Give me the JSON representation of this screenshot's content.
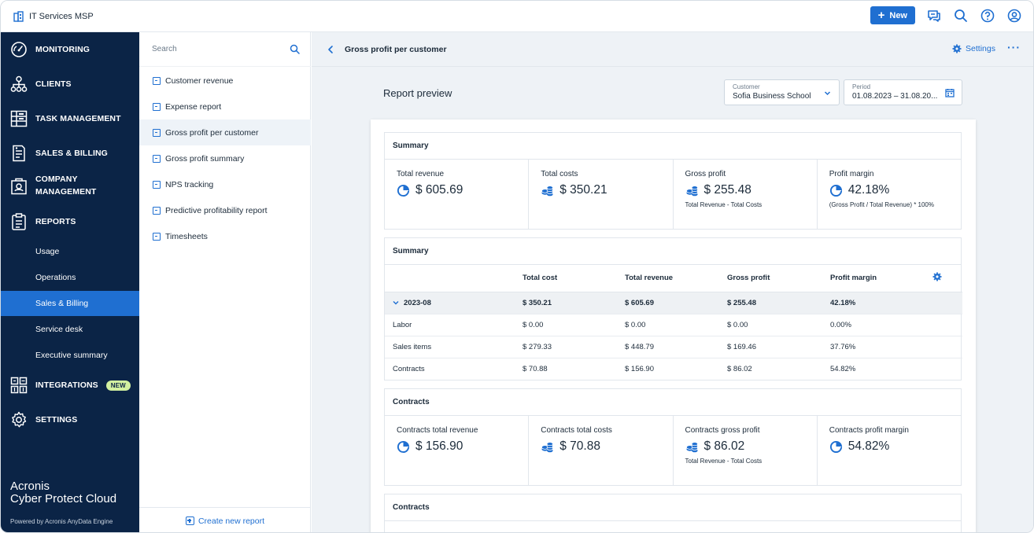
{
  "app": {
    "tenant": "IT Services MSP",
    "new_label": "New"
  },
  "nav": {
    "items": [
      {
        "label": "MONITORING",
        "icon": "gauge-icon"
      },
      {
        "label": "CLIENTS",
        "icon": "org-chart-icon"
      },
      {
        "label": "TASK MANAGEMENT",
        "icon": "task-board-icon"
      },
      {
        "label": "SALES & BILLING",
        "icon": "invoice-icon"
      },
      {
        "label": "COMPANY MANAGEMENT",
        "label_line1": "COMPANY",
        "label_line2": "MANAGEMENT",
        "icon": "briefcase-icon"
      },
      {
        "label": "REPORTS",
        "icon": "clipboard-icon"
      },
      {
        "label": "INTEGRATIONS",
        "icon": "grid-icon",
        "badge": "NEW"
      },
      {
        "label": "SETTINGS",
        "icon": "gear-icon"
      }
    ],
    "report_subitems": [
      "Usage",
      "Operations",
      "Sales & Billing",
      "Service desk",
      "Executive summary"
    ],
    "active_subitem": "Sales & Billing",
    "brand_line1": "Acronis",
    "brand_line2": "Cyber Protect Cloud",
    "powered_by": "Powered by Acronis AnyData Engine"
  },
  "reports_list": {
    "search_placeholder": "Search",
    "items": [
      "Customer revenue",
      "Expense report",
      "Gross profit per customer",
      "Gross profit summary",
      "NPS tracking",
      "Predictive profitability report",
      "Timesheets"
    ],
    "active": "Gross profit per customer",
    "create_new": "Create new report"
  },
  "content": {
    "title": "Gross profit per customer",
    "settings_label": "Settings",
    "more_label": "···",
    "preview_title": "Report preview",
    "customer": {
      "label": "Customer",
      "value": "Sofia Business School"
    },
    "period": {
      "label": "Period",
      "value": "01.08.2023 – 31.08.20..."
    }
  },
  "summary_kpis": {
    "title": "Summary",
    "items": [
      {
        "label": "Total revenue",
        "value": "$ 605.69",
        "note": "",
        "icon": "pie-chart-icon"
      },
      {
        "label": "Total costs",
        "value": "$ 350.21",
        "note": "",
        "icon": "coins-icon"
      },
      {
        "label": "Gross profit",
        "value": "$ 255.48",
        "note": "Total Revenue - Total Costs",
        "icon": "coins-icon"
      },
      {
        "label": "Profit margin",
        "value": "42.18%",
        "note": "(Gross Profit / Total Revenue) * 100%",
        "icon": "pie-chart-icon"
      }
    ]
  },
  "summary_table": {
    "title": "Summary",
    "columns": [
      "",
      "Total cost",
      "Total revenue",
      "Gross profit",
      "Profit margin"
    ],
    "group": {
      "label": "2023-08",
      "values": [
        "$ 350.21",
        "$ 605.69",
        "$ 255.48",
        "42.18%"
      ]
    },
    "rows": [
      {
        "label": "Labor",
        "values": [
          "$ 0.00",
          "$ 0.00",
          "$ 0.00",
          "0.00%"
        ]
      },
      {
        "label": "Sales items",
        "values": [
          "$ 279.33",
          "$ 448.79",
          "$ 169.46",
          "37.76%"
        ]
      },
      {
        "label": "Contracts",
        "values": [
          "$ 70.88",
          "$ 156.90",
          "$ 86.02",
          "54.82%"
        ]
      }
    ]
  },
  "contracts_kpis": {
    "title": "Contracts",
    "items": [
      {
        "label": "Contracts total revenue",
        "value": "$ 156.90",
        "note": "",
        "icon": "pie-chart-icon"
      },
      {
        "label": "Contracts total costs",
        "value": "$ 70.88",
        "note": "",
        "icon": "coins-icon"
      },
      {
        "label": "Contracts gross profit",
        "value": "$ 86.02",
        "note": "Total Revenue - Total Costs",
        "icon": "coins-icon"
      },
      {
        "label": "Contracts profit margin",
        "value": "54.82%",
        "note": "",
        "icon": "pie-chart-icon"
      }
    ]
  },
  "contracts_section2": {
    "title": "Contracts"
  },
  "colors": {
    "accent": "#1f6fd1",
    "nav_bg": "#0b2446",
    "new_badge": "#d2f0a0"
  }
}
